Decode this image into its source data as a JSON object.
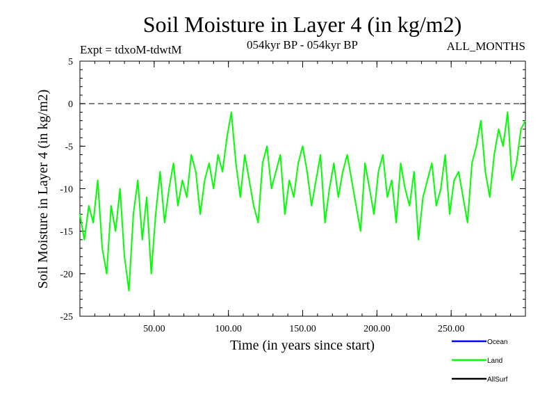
{
  "chart_data": {
    "type": "line",
    "title": "Soil Moisture in Layer 4 (in kg/m2)",
    "subtitle_left": "Expt = tdxoM-tdwtM",
    "subtitle_center": "054kyr BP - 054kyr BP",
    "subtitle_right": "ALL_MONTHS",
    "xlabel": "Time (in years since start)",
    "ylabel": "Soil Moisture in Layer 4 (in kg/m2)",
    "xlim": [
      0,
      300
    ],
    "ylim": [
      -25,
      5
    ],
    "x_ticks": [
      50,
      100,
      150,
      200,
      250
    ],
    "x_tick_labels": [
      "50.00",
      "100.00",
      "150.00",
      "200.00",
      "250.00"
    ],
    "y_ticks": [
      5,
      0,
      -5,
      -10,
      -15,
      -20,
      -25
    ],
    "y_tick_labels": [
      "5",
      "0",
      "-5",
      "-10",
      "-15",
      "-20",
      "-25"
    ],
    "reference_line": 0,
    "series": [
      {
        "name": "Ocean",
        "color": "#0000ff",
        "values": []
      },
      {
        "name": "Land",
        "color": "#00ff00",
        "x": [
          0,
          3,
          6,
          9,
          12,
          15,
          18,
          21,
          24,
          27,
          30,
          33,
          36,
          39,
          42,
          45,
          48,
          51,
          54,
          57,
          60,
          63,
          66,
          69,
          72,
          75,
          78,
          81,
          84,
          87,
          90,
          93,
          96,
          99,
          102,
          105,
          108,
          111,
          114,
          117,
          120,
          123,
          126,
          129,
          132,
          135,
          138,
          141,
          144,
          147,
          150,
          153,
          156,
          159,
          162,
          165,
          168,
          171,
          174,
          177,
          180,
          183,
          186,
          189,
          192,
          195,
          198,
          201,
          204,
          207,
          210,
          213,
          216,
          219,
          222,
          225,
          228,
          231,
          234,
          237,
          240,
          243,
          246,
          249,
          252,
          255,
          258,
          261,
          264,
          267,
          270,
          273,
          276,
          279,
          282,
          285,
          288,
          291,
          294,
          297,
          300
        ],
        "values": [
          -13,
          -16,
          -12,
          -14,
          -9,
          -17,
          -20,
          -12,
          -15,
          -10,
          -18,
          -22,
          -13,
          -9,
          -16,
          -11,
          -20,
          -13,
          -8,
          -14,
          -10,
          -7,
          -12,
          -9,
          -11,
          -6,
          -8,
          -13,
          -9,
          -7,
          -10,
          -6,
          -8,
          -4,
          -1,
          -7,
          -11,
          -6,
          -9,
          -12,
          -14,
          -7,
          -5,
          -10,
          -8,
          -6,
          -13,
          -9,
          -11,
          -7,
          -5,
          -8,
          -12,
          -9,
          -6,
          -14,
          -10,
          -7,
          -11,
          -8,
          -6,
          -9,
          -12,
          -15,
          -7,
          -10,
          -13,
          -8,
          -6,
          -11,
          -9,
          -14,
          -7,
          -10,
          -12,
          -8,
          -16,
          -11,
          -9,
          -7,
          -12,
          -10,
          -6,
          -13,
          -9,
          -8,
          -11,
          -14,
          -7,
          -5,
          -2,
          -8,
          -11,
          -6,
          -3,
          -5,
          -1,
          -9,
          -7,
          -3,
          -2
        ]
      },
      {
        "name": "AllSurf",
        "color": "#000000",
        "values": []
      }
    ],
    "legend_position": "bottom-right"
  }
}
